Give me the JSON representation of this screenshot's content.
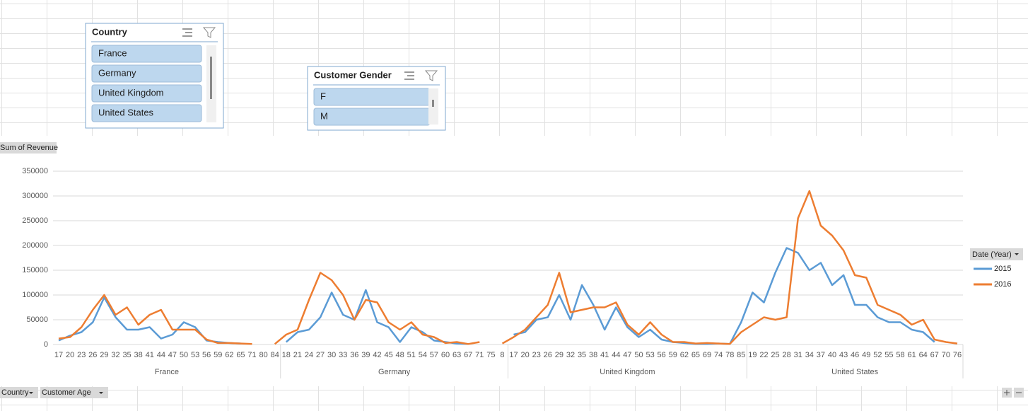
{
  "slicers": [
    {
      "title": "Country",
      "items": [
        "France",
        "Germany",
        "United Kingdom",
        "United States"
      ]
    },
    {
      "title": "Customer Gender",
      "items": [
        "F",
        "M"
      ]
    }
  ],
  "chart_data": {
    "type": "line",
    "value_field": "Sum of Revenue",
    "legend_title": "Date (Year)",
    "axis_fields": [
      "Country",
      "Customer Age"
    ],
    "groups": [
      {
        "name": "France",
        "categories": [
          "17",
          "20",
          "23",
          "26",
          "29",
          "32",
          "35",
          "38",
          "41",
          "44",
          "47",
          "50",
          "53",
          "56",
          "59",
          "62",
          "65",
          "71",
          "80",
          "84"
        ]
      },
      {
        "name": "Germany",
        "categories": [
          "18",
          "21",
          "24",
          "27",
          "30",
          "33",
          "36",
          "39",
          "42",
          "45",
          "48",
          "51",
          "54",
          "57",
          "60",
          "63",
          "67",
          "71",
          "75",
          "8"
        ]
      },
      {
        "name": "United Kingdom",
        "categories": [
          "17",
          "20",
          "23",
          "26",
          "29",
          "32",
          "35",
          "38",
          "41",
          "44",
          "47",
          "50",
          "53",
          "56",
          "59",
          "62",
          "65",
          "69",
          "74",
          "78",
          "85"
        ]
      },
      {
        "name": "United States",
        "categories": [
          "19",
          "22",
          "25",
          "28",
          "31",
          "34",
          "37",
          "40",
          "43",
          "46",
          "49",
          "52",
          "55",
          "58",
          "61",
          "64",
          "67",
          "70",
          "76"
        ]
      }
    ],
    "series": [
      {
        "name": "2015",
        "color": "#5b9bd5",
        "values": [
          8000,
          18000,
          25000,
          45000,
          95000,
          55000,
          30000,
          30000,
          35000,
          12000,
          20000,
          45000,
          35000,
          8000,
          5000,
          3000,
          2000,
          null,
          null,
          null,
          5000,
          25000,
          30000,
          55000,
          105000,
          60000,
          50000,
          110000,
          45000,
          35000,
          5000,
          35000,
          25000,
          8000,
          5000,
          2000,
          1000,
          null,
          1000,
          null,
          20000,
          25000,
          50000,
          55000,
          100000,
          50000,
          120000,
          80000,
          30000,
          75000,
          35000,
          15000,
          30000,
          10000,
          5000,
          3000,
          1000,
          1000,
          2000,
          1000,
          45000,
          105000,
          85000,
          145000,
          195000,
          185000,
          150000,
          165000,
          120000,
          140000,
          80000,
          80000,
          55000,
          45000,
          45000,
          30000,
          25000,
          5000,
          null,
          null
        ]
      },
      {
        "name": "2016",
        "color": "#ed7d31",
        "values": [
          12000,
          15000,
          35000,
          70000,
          100000,
          60000,
          75000,
          40000,
          60000,
          70000,
          30000,
          30000,
          30000,
          10000,
          3000,
          3000,
          2000,
          1000,
          null,
          1000,
          20000,
          30000,
          90000,
          145000,
          130000,
          100000,
          50000,
          90000,
          85000,
          45000,
          30000,
          45000,
          20000,
          15000,
          3000,
          5000,
          1000,
          5000,
          null,
          2000,
          15000,
          30000,
          55000,
          80000,
          145000,
          65000,
          70000,
          75000,
          75000,
          85000,
          40000,
          20000,
          45000,
          20000,
          5000,
          5000,
          2000,
          3000,
          2000,
          1000,
          25000,
          40000,
          55000,
          50000,
          55000,
          255000,
          310000,
          240000,
          220000,
          190000,
          140000,
          135000,
          80000,
          70000,
          60000,
          40000,
          50000,
          10000,
          5000,
          2000
        ]
      }
    ],
    "ylim": [
      0,
      350000
    ],
    "yticks": [
      0,
      50000,
      100000,
      150000,
      200000,
      250000,
      300000,
      350000
    ],
    "grid": true
  }
}
